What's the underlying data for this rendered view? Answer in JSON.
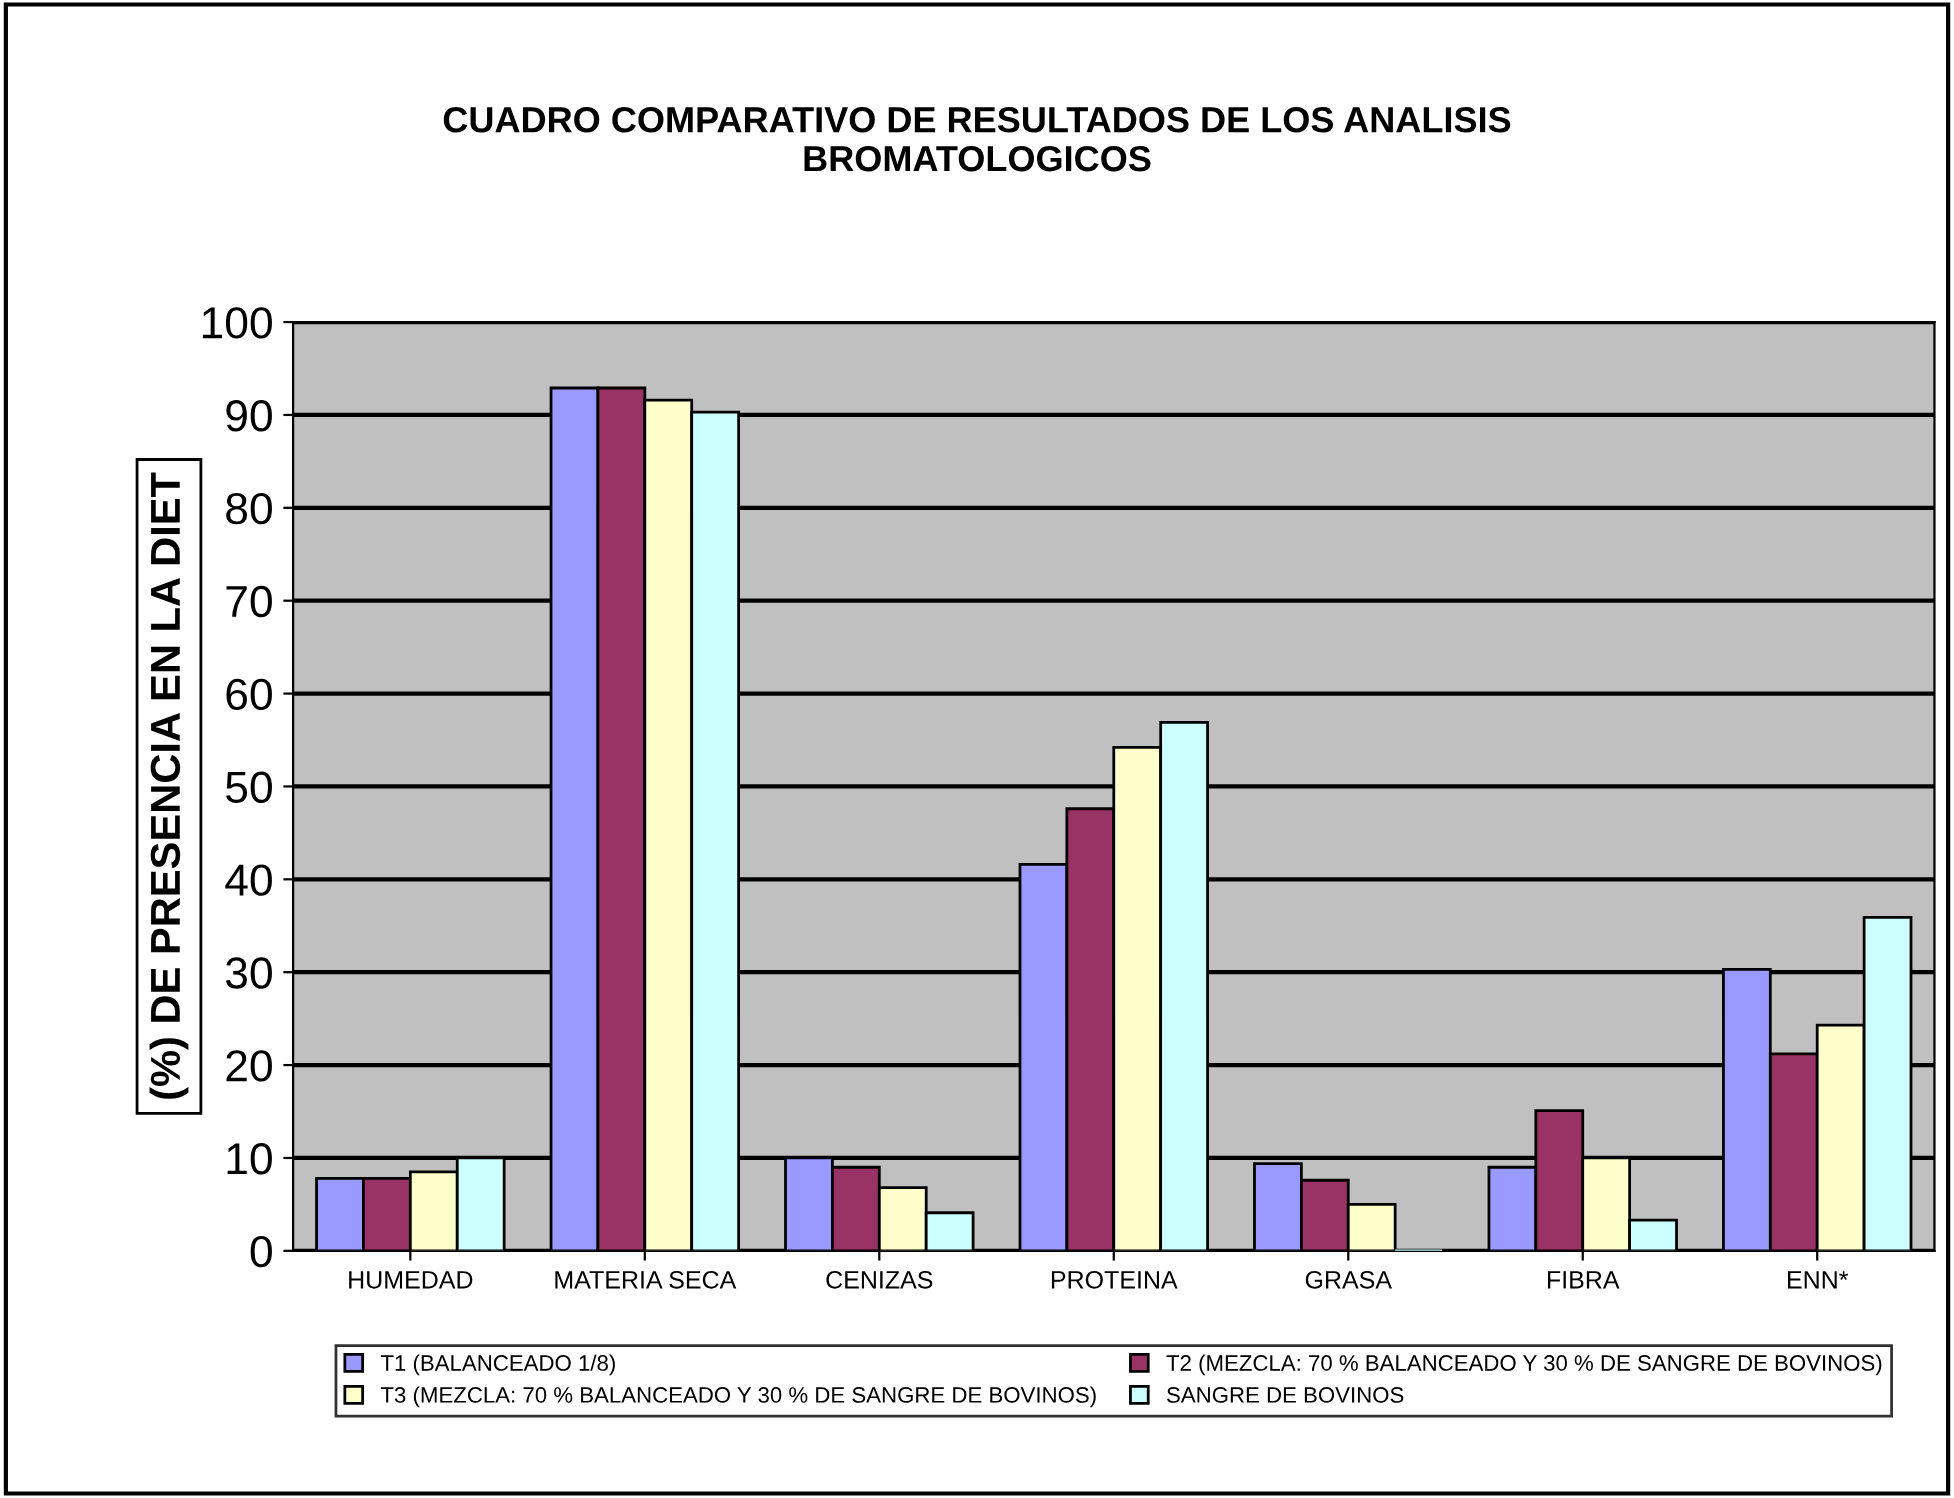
{
  "chart_data": {
    "type": "bar",
    "title": "CUADRO COMPARATIVO DE RESULTADOS DE LOS ANALISIS\nBROMATOLOGICOS",
    "ylabel": "(%) DE PRESENCIA EN LA DIET",
    "categories": [
      "HUMEDAD",
      "MATERIA SECA",
      "CENIZAS",
      "PROTEINA",
      "GRASA",
      "FIBRA",
      "ENN*"
    ],
    "series": [
      {
        "name": "T1 (BALANCEADO 1/8)",
        "color": "#9999ff",
        "values": [
          7.8,
          92.9,
          10.0,
          41.6,
          9.4,
          9.0,
          30.3
        ]
      },
      {
        "name": "T2 (MEZCLA: 70 % BALANCEADO Y 30 % DE SANGRE DE BOVINOS)",
        "color": "#993366",
        "values": [
          7.8,
          92.9,
          9.0,
          47.6,
          7.6,
          15.1,
          21.2
        ]
      },
      {
        "name": "T3 (MEZCLA: 70 % BALANCEADO Y 30 % DE SANGRE DE BOVINOS)",
        "color": "#ffffcc",
        "values": [
          8.5,
          91.6,
          6.8,
          54.2,
          5.0,
          10.0,
          24.3
        ]
      },
      {
        "name": "SANGRE DE BOVINOS",
        "color": "#ccffff",
        "values": [
          10.0,
          90.3,
          4.1,
          56.9,
          0.0,
          3.3,
          35.9
        ]
      }
    ],
    "ylim": [
      0,
      100
    ],
    "yticks": [
      0,
      10,
      20,
      30,
      40,
      50,
      60,
      70,
      80,
      90,
      100
    ],
    "grid": "y",
    "legend": "bottom"
  }
}
